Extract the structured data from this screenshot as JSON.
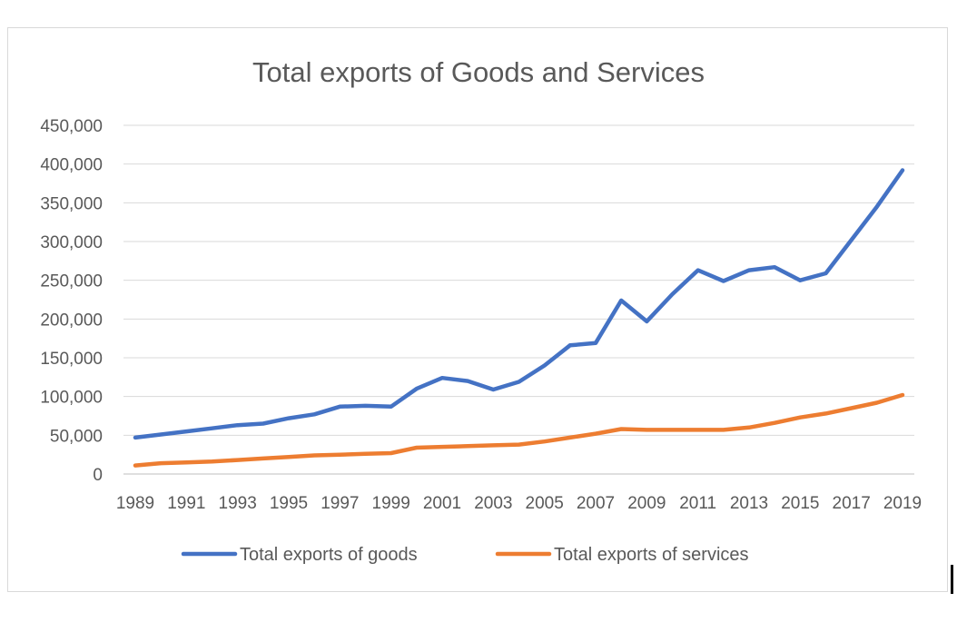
{
  "chart_data": {
    "type": "line",
    "title": "Total exports of Goods and Services",
    "xlabel": "",
    "ylabel": "",
    "ylim": [
      0,
      450000
    ],
    "yticks": [
      0,
      50000,
      100000,
      150000,
      200000,
      250000,
      300000,
      350000,
      400000,
      450000
    ],
    "ytick_labels": [
      "0",
      "50,000",
      "100,000",
      "150,000",
      "200,000",
      "250,000",
      "300,000",
      "350,000",
      "400,000",
      "450,000"
    ],
    "x": [
      1989,
      1990,
      1991,
      1992,
      1993,
      1994,
      1995,
      1996,
      1997,
      1998,
      1999,
      2000,
      2001,
      2002,
      2003,
      2004,
      2005,
      2006,
      2007,
      2008,
      2009,
      2010,
      2011,
      2012,
      2013,
      2014,
      2015,
      2016,
      2017,
      2018,
      2019
    ],
    "xtick_labels": [
      "1989",
      "1991",
      "1993",
      "1995",
      "1997",
      "1999",
      "2001",
      "2003",
      "2005",
      "2007",
      "2009",
      "2011",
      "2013",
      "2015",
      "2017",
      "2019"
    ],
    "grid": true,
    "legend": "bottom",
    "series": [
      {
        "name": "Total exports of goods",
        "color": "#4472c4",
        "values": [
          47000,
          51000,
          55000,
          59000,
          63000,
          65000,
          72000,
          77000,
          87000,
          88000,
          87000,
          110000,
          124000,
          120000,
          109000,
          119000,
          140000,
          166000,
          169000,
          224000,
          197000,
          232000,
          263000,
          249000,
          263000,
          267000,
          250000,
          259000,
          302000,
          345000,
          392000
        ]
      },
      {
        "name": "Total exports of services",
        "color": "#ed7d31",
        "values": [
          11000,
          14000,
          15000,
          16000,
          18000,
          20000,
          22000,
          24000,
          25000,
          26000,
          27000,
          34000,
          35000,
          36000,
          37000,
          38000,
          42000,
          47000,
          52000,
          58000,
          57000,
          57000,
          57000,
          57000,
          60000,
          66000,
          73000,
          78000,
          85000,
          92000,
          102000
        ]
      }
    ]
  }
}
